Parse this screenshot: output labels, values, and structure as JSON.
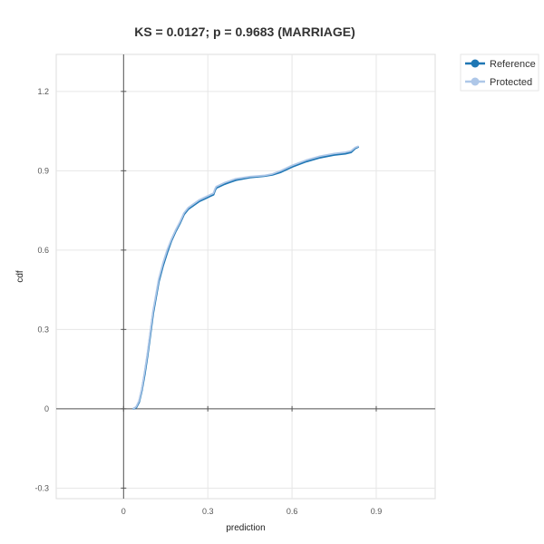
{
  "chart_data": {
    "type": "line",
    "title": "KS = 0.0127; p = 0.9683 (MARRIAGE)",
    "xlabel": "prediction",
    "ylabel": "cdf",
    "xlim": [
      -0.24,
      1.11
    ],
    "ylim": [
      -0.34,
      1.34
    ],
    "x_ticks": [
      0,
      0.3,
      0.6,
      0.9
    ],
    "x_tick_labels": [
      "0",
      "0.3",
      "0.6",
      "0.9"
    ],
    "y_ticks": [
      -0.3,
      0,
      0.3,
      0.6,
      0.9,
      1.2
    ],
    "y_tick_labels": [
      "-0.3",
      "0",
      "0.3",
      "0.6",
      "0.9",
      "1.2"
    ],
    "grid": true,
    "legend_position": "top-right-outside",
    "series": [
      {
        "name": "Reference",
        "color": "#1f77b4",
        "x": [
          0.035,
          0.045,
          0.055,
          0.065,
          0.075,
          0.085,
          0.095,
          0.105,
          0.115,
          0.125,
          0.14,
          0.155,
          0.17,
          0.185,
          0.2,
          0.215,
          0.23,
          0.25,
          0.27,
          0.29,
          0.31,
          0.32,
          0.325,
          0.33,
          0.36,
          0.4,
          0.45,
          0.5,
          0.53,
          0.56,
          0.6,
          0.65,
          0.7,
          0.75,
          0.79,
          0.81,
          0.825,
          0.835
        ],
        "y": [
          0.0,
          0.005,
          0.025,
          0.07,
          0.13,
          0.2,
          0.28,
          0.36,
          0.42,
          0.48,
          0.54,
          0.59,
          0.635,
          0.67,
          0.7,
          0.735,
          0.755,
          0.77,
          0.785,
          0.795,
          0.805,
          0.81,
          0.825,
          0.835,
          0.85,
          0.865,
          0.875,
          0.88,
          0.885,
          0.895,
          0.915,
          0.935,
          0.95,
          0.96,
          0.965,
          0.97,
          0.985,
          0.99
        ]
      },
      {
        "name": "Protected",
        "color": "#aec7e8",
        "x": [
          0.035,
          0.045,
          0.055,
          0.065,
          0.075,
          0.085,
          0.095,
          0.105,
          0.115,
          0.125,
          0.14,
          0.155,
          0.17,
          0.185,
          0.2,
          0.215,
          0.23,
          0.25,
          0.27,
          0.29,
          0.31,
          0.32,
          0.325,
          0.33,
          0.36,
          0.4,
          0.45,
          0.5,
          0.53,
          0.56,
          0.6,
          0.65,
          0.7,
          0.75,
          0.79,
          0.81,
          0.825,
          0.835
        ],
        "y": [
          0.0,
          0.008,
          0.03,
          0.075,
          0.14,
          0.21,
          0.29,
          0.37,
          0.43,
          0.49,
          0.55,
          0.6,
          0.64,
          0.675,
          0.705,
          0.74,
          0.76,
          0.775,
          0.79,
          0.8,
          0.81,
          0.815,
          0.83,
          0.84,
          0.855,
          0.87,
          0.878,
          0.882,
          0.888,
          0.9,
          0.92,
          0.94,
          0.955,
          0.965,
          0.97,
          0.975,
          0.988,
          0.992
        ]
      }
    ]
  }
}
